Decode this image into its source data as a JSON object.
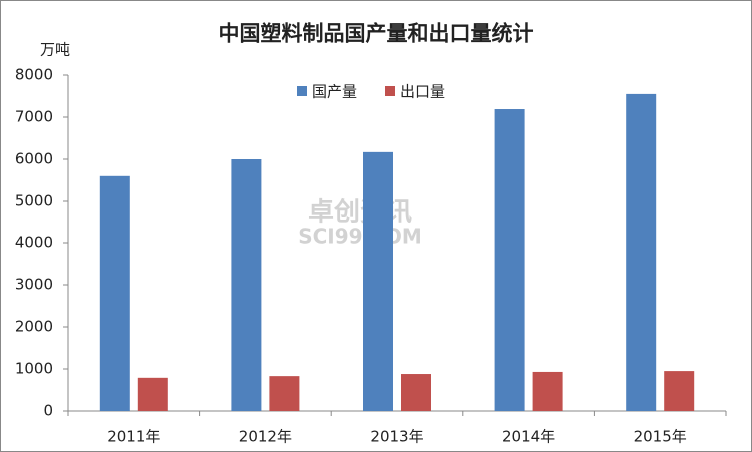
{
  "chart_data": {
    "type": "bar",
    "title": "中国塑料制品国产量和出口量统计",
    "y_label": "万吨",
    "watermark": [
      "卓创资讯",
      "SCI99.COM"
    ],
    "categories": [
      "2011年",
      "2012年",
      "2013年",
      "2014年",
      "2015年"
    ],
    "series": [
      {
        "name": "国产量",
        "color": "#4f81bd",
        "values": [
          5600,
          6000,
          6170,
          7190,
          7550
        ]
      },
      {
        "name": "出口量",
        "color": "#c0504d",
        "values": [
          790,
          830,
          880,
          930,
          950
        ]
      }
    ],
    "ylim": [
      0,
      8000
    ],
    "yticks": [
      0,
      1000,
      2000,
      3000,
      4000,
      5000,
      6000,
      7000,
      8000
    ],
    "legend": "top",
    "grid": false
  }
}
